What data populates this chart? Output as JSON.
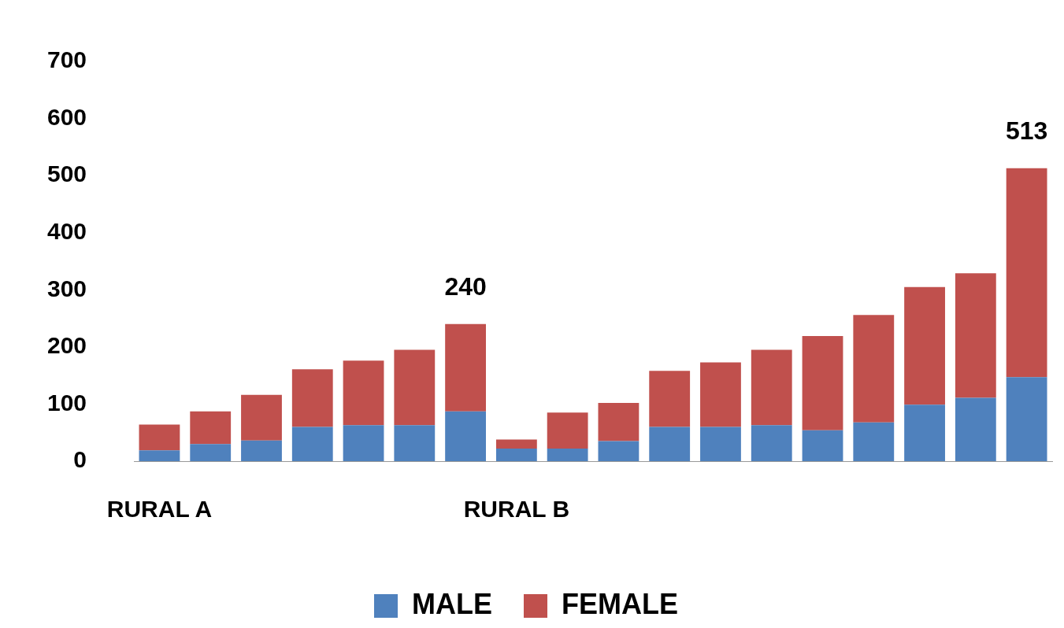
{
  "chart_data": {
    "type": "bar",
    "stacked": true,
    "categories": [
      "RURAL A",
      null,
      null,
      null,
      null,
      null,
      null,
      "RURAL B",
      null,
      null,
      null,
      null,
      null,
      null,
      null,
      null,
      null,
      null
    ],
    "series": [
      {
        "name": "MALE",
        "color": "#4f81bd",
        "values": [
          19,
          30,
          36,
          60,
          63,
          63,
          87,
          22,
          22,
          35,
          60,
          60,
          63,
          54,
          68,
          99,
          111,
          147
        ]
      },
      {
        "name": "FEMALE",
        "color": "#c0504d",
        "values": [
          45,
          57,
          80,
          101,
          113,
          132,
          153,
          16,
          63,
          67,
          98,
          113,
          132,
          165,
          188,
          206,
          218,
          366
        ]
      }
    ],
    "totals": [
      null,
      null,
      null,
      null,
      null,
      null,
      "240",
      null,
      null,
      null,
      null,
      null,
      null,
      null,
      null,
      null,
      null,
      "513"
    ],
    "ylim": [
      0,
      700
    ],
    "yticks": [
      0,
      100,
      200,
      300,
      400,
      500,
      600,
      700
    ],
    "grid": false,
    "legend": "bottom"
  }
}
